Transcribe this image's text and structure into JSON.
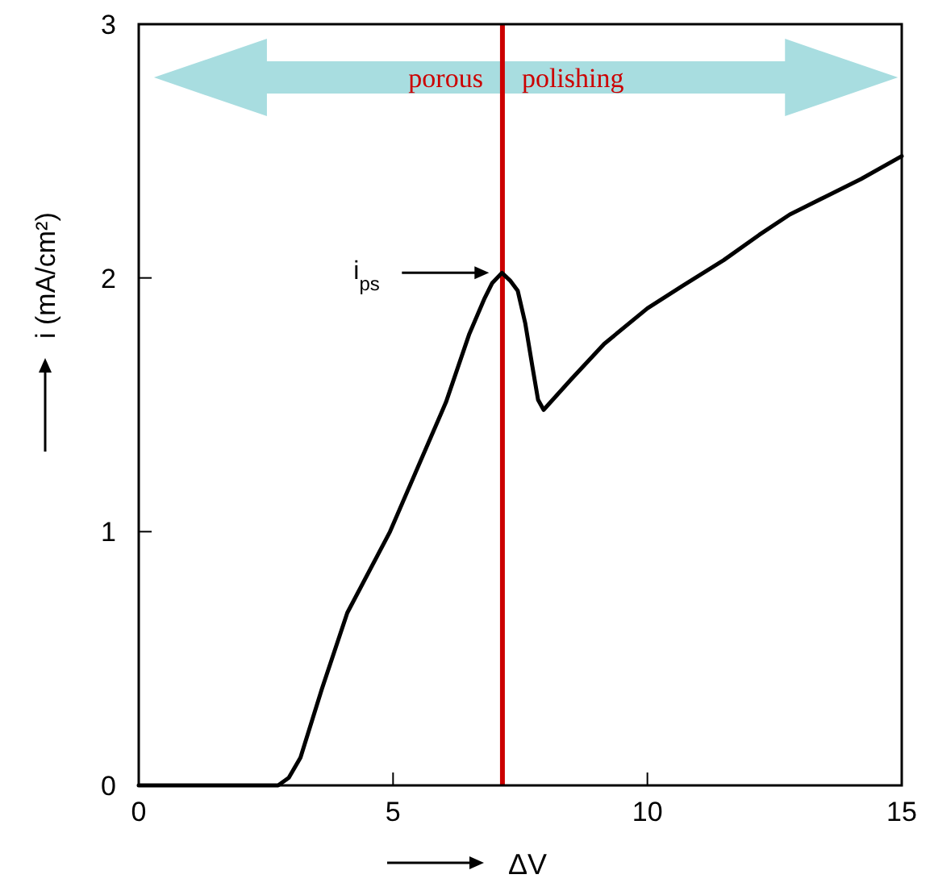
{
  "chart_data": {
    "type": "line",
    "xlabel": "ΔV",
    "ylabel": "i  (mA/cm²)",
    "xlim": [
      0,
      15
    ],
    "ylim": [
      0,
      3
    ],
    "xticks": [
      0,
      5,
      10,
      15
    ],
    "yticks": [
      0,
      1,
      2,
      3
    ],
    "grid": false,
    "marker": "none",
    "line_style": "solid",
    "series": [
      {
        "color": "#000000",
        "x": [
          0,
          1,
          2,
          2.5,
          2.74,
          2.95,
          3.18,
          3.6,
          4.1,
          4.94,
          5.5,
          6.04,
          6.5,
          6.8,
          6.95,
          7.14,
          7.3,
          7.45,
          7.6,
          7.74,
          7.85,
          7.96,
          8.5,
          9.15,
          10,
          10.7,
          11.5,
          12.2,
          12.8,
          13.5,
          14.2,
          15
        ],
        "values": [
          0,
          0,
          0,
          0,
          0,
          0.03,
          0.11,
          0.38,
          0.68,
          1.0,
          1.26,
          1.51,
          1.78,
          1.92,
          1.98,
          2.02,
          1.99,
          1.95,
          1.82,
          1.65,
          1.52,
          1.48,
          1.6,
          1.74,
          1.88,
          1.97,
          2.07,
          2.17,
          2.25,
          2.32,
          2.39,
          2.48
        ]
      }
    ],
    "ref_lines": [
      {
        "axis": "x",
        "value": 7.15,
        "color": "#cc0000",
        "line_style": "solid"
      }
    ],
    "annotations": [
      "porous",
      "polishing",
      "i$_{ps}$"
    ]
  }
}
